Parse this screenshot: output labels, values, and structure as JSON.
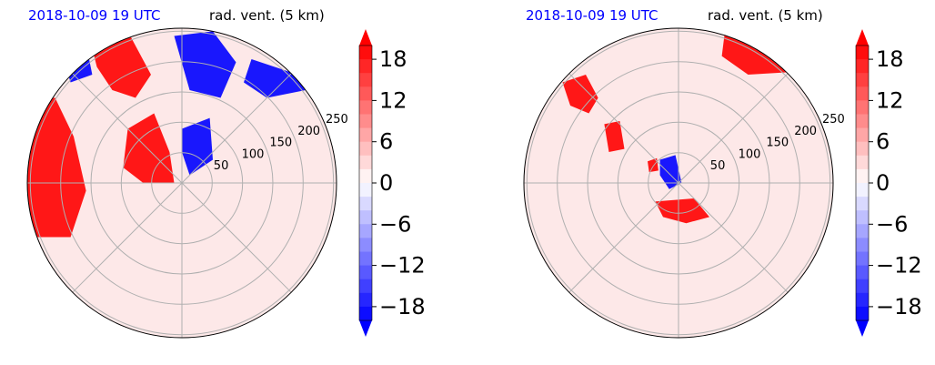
{
  "panels": [
    {
      "time_label": "2018-10-09 19 UTC",
      "variable_label": "rad. vent. (5 km)"
    },
    {
      "time_label": "2018-10-09 19 UTC",
      "variable_label": "rad. vent. (5 km)"
    }
  ],
  "colors": {
    "time_label": "#0000ff",
    "positive": "#ff0000",
    "negative": "#0000ff",
    "neutral": "#ffffff",
    "grid": "#b0b0b0"
  },
  "chart_data": [
    {
      "type": "heatmap",
      "projection": "polar",
      "title": "rad. vent. (5 km)",
      "time": "2018-10-09 19 UTC",
      "range_rings": [
        50,
        100,
        150,
        200,
        250
      ],
      "range_tick_labels": [
        "50",
        "100",
        "150",
        "200",
        "250"
      ],
      "colorbar": {
        "ticks": [
          18,
          12,
          6,
          0,
          -6,
          -12,
          -18
        ],
        "tick_labels": [
          "18",
          "12",
          "6",
          "0",
          "−6",
          "−12",
          "−18"
        ],
        "min": -20,
        "max": 20,
        "levels": 20,
        "extend": "both"
      }
    },
    {
      "type": "heatmap",
      "projection": "polar",
      "title": "rad. vent. (5 km)",
      "time": "2018-10-09 19 UTC",
      "range_rings": [
        50,
        100,
        150,
        200,
        250
      ],
      "range_tick_labels": [
        "50",
        "100",
        "150",
        "200",
        "250"
      ],
      "colorbar": {
        "ticks": [
          18,
          12,
          6,
          0,
          -6,
          -12,
          -18
        ],
        "tick_labels": [
          "18",
          "12",
          "6",
          "0",
          "−6",
          "−12",
          "−18"
        ],
        "min": -20,
        "max": 20,
        "levels": 20,
        "extend": "both"
      }
    }
  ]
}
